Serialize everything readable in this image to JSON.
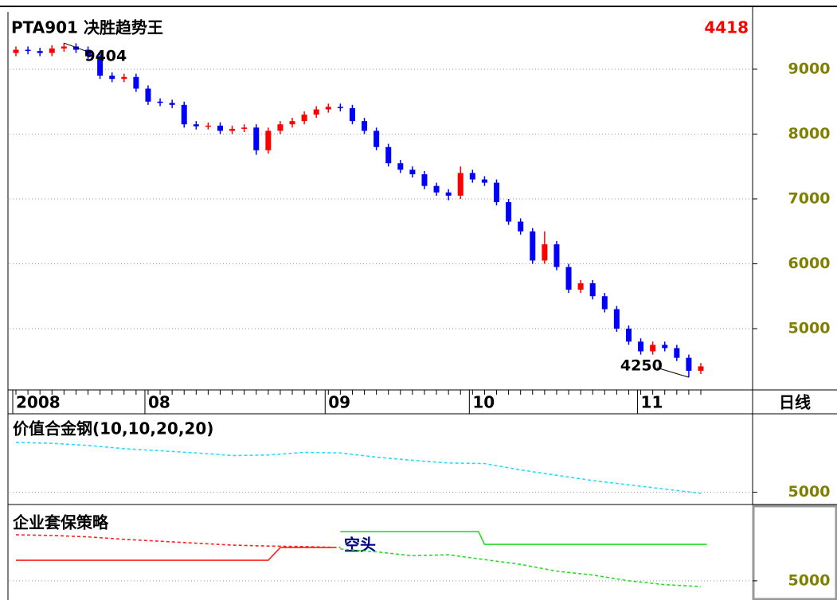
{
  "chart_data": [
    {
      "type": "candlestick",
      "title": "PTA901 决胜趋势王",
      "period": "日线",
      "up_color": "#ff0000",
      "down_color": "#0000ff",
      "categories": [
        "2008",
        null,
        null,
        null,
        null,
        null,
        null,
        null,
        null,
        null,
        null,
        "08",
        null,
        null,
        null,
        null,
        null,
        null,
        null,
        null,
        null,
        null,
        null,
        null,
        null,
        null,
        "09",
        null,
        null,
        null,
        null,
        null,
        null,
        null,
        null,
        null,
        null,
        null,
        "10",
        null,
        null,
        null,
        null,
        null,
        null,
        null,
        null,
        null,
        null,
        null,
        null,
        null,
        "11",
        null,
        null,
        null,
        null,
        null
      ],
      "open": [
        9250,
        9300,
        9280,
        9250,
        9320,
        9350,
        9300,
        9200,
        8900,
        8850,
        8880,
        8700,
        8500,
        8480,
        8450,
        8150,
        8120,
        8130,
        8050,
        8080,
        8100,
        7750,
        8050,
        8150,
        8200,
        8300,
        8380,
        8420,
        8400,
        8200,
        8050,
        7800,
        7550,
        7450,
        7380,
        7200,
        7100,
        7050,
        7400,
        7300,
        7250,
        6950,
        6650,
        6500,
        6050,
        6300,
        5950,
        5600,
        5700,
        5500,
        5300,
        5000,
        4800,
        4650,
        4750,
        4700,
        4550,
        4350
      ],
      "high": [
        9350,
        9350,
        9330,
        9370,
        9404,
        9400,
        9350,
        9250,
        8950,
        8930,
        8930,
        8750,
        8550,
        8530,
        8500,
        8200,
        8180,
        8180,
        8130,
        8150,
        8150,
        8100,
        8200,
        8250,
        8350,
        8430,
        8470,
        8470,
        8450,
        8250,
        8100,
        7850,
        7600,
        7500,
        7430,
        7250,
        7150,
        7500,
        7450,
        7350,
        7300,
        7000,
        6700,
        6550,
        6500,
        6350,
        6000,
        5750,
        5750,
        5550,
        5350,
        5050,
        4850,
        4800,
        4800,
        4750,
        4600,
        4470
      ],
      "low": [
        9200,
        9230,
        9200,
        9200,
        9270,
        9250,
        9150,
        8850,
        8800,
        8800,
        8650,
        8450,
        8430,
        8400,
        8100,
        8070,
        8070,
        8000,
        8000,
        8030,
        7680,
        7700,
        8000,
        8100,
        8150,
        8250,
        8330,
        8350,
        8150,
        8000,
        7750,
        7500,
        7400,
        7330,
        7150,
        7050,
        6980,
        7000,
        7250,
        7200,
        6900,
        6600,
        6450,
        6000,
        6000,
        5900,
        5550,
        5550,
        5450,
        5250,
        4950,
        4750,
        4600,
        4600,
        4650,
        4500,
        4250,
        4300
      ],
      "close": [
        9300,
        9280,
        9250,
        9320,
        9350,
        9300,
        9200,
        8900,
        8850,
        8880,
        8700,
        8500,
        8480,
        8450,
        8150,
        8120,
        8130,
        8050,
        8080,
        8100,
        7750,
        8050,
        8150,
        8200,
        8300,
        8380,
        8420,
        8400,
        8200,
        8050,
        7800,
        7550,
        7450,
        7380,
        7200,
        7100,
        7050,
        7400,
        7300,
        7250,
        6950,
        6650,
        6500,
        6050,
        6300,
        5950,
        5600,
        5700,
        5500,
        5300,
        5000,
        4800,
        4650,
        4750,
        4700,
        4550,
        4350,
        4418
      ],
      "ylim": [
        4055,
        9883
      ],
      "yticks": [
        5000,
        6000,
        7000,
        8000,
        9000
      ],
      "grid": true
    },
    {
      "type": "line",
      "title": "价值合金钢(10,10,20,20)",
      "ylim": [
        4000,
        12000
      ],
      "yticks": [
        5000
      ],
      "grid": true,
      "series": [
        {
          "color": "#22ddff",
          "dashed": true,
          "x": [
            0,
            3,
            6,
            9,
            12,
            15,
            18,
            21,
            24,
            27,
            30,
            33,
            36,
            39,
            42,
            45,
            48,
            51,
            54,
            57
          ],
          "values": [
            9680,
            9600,
            9400,
            9100,
            8900,
            8700,
            8450,
            8500,
            8750,
            8700,
            8300,
            8000,
            7750,
            7700,
            7100,
            6600,
            6100,
            5700,
            5300,
            4900
          ]
        }
      ]
    },
    {
      "type": "line",
      "title": "企业套保策略",
      "annotation": "空头",
      "ylim": [
        4000,
        12000
      ],
      "yticks": [
        5000
      ],
      "grid": true,
      "series": [
        {
          "color": "#ff2020",
          "dashed": false,
          "x": [
            0,
            21,
            22,
            26.5
          ],
          "values": [
            7130,
            7130,
            8450,
            8450
          ]
        },
        {
          "color": "#22dd22",
          "dashed": false,
          "x": [
            27,
            38.5,
            39,
            57.5
          ],
          "values": [
            10100,
            10100,
            8780,
            8780
          ]
        },
        {
          "color": "#ff2020",
          "dashed": true,
          "x": [
            0,
            3,
            6,
            9,
            12,
            15,
            18,
            21,
            24,
            27
          ],
          "values": [
            9770,
            9700,
            9550,
            9300,
            9100,
            8900,
            8700,
            8600,
            8550,
            8450
          ]
        },
        {
          "color": "#22dd22",
          "dashed": true,
          "x": [
            27,
            30,
            33,
            36,
            39,
            42,
            45,
            48,
            51,
            54,
            57
          ],
          "values": [
            8300,
            8000,
            7600,
            7700,
            7200,
            6700,
            6000,
            5600,
            5000,
            4600,
            4400
          ]
        }
      ]
    }
  ]
}
